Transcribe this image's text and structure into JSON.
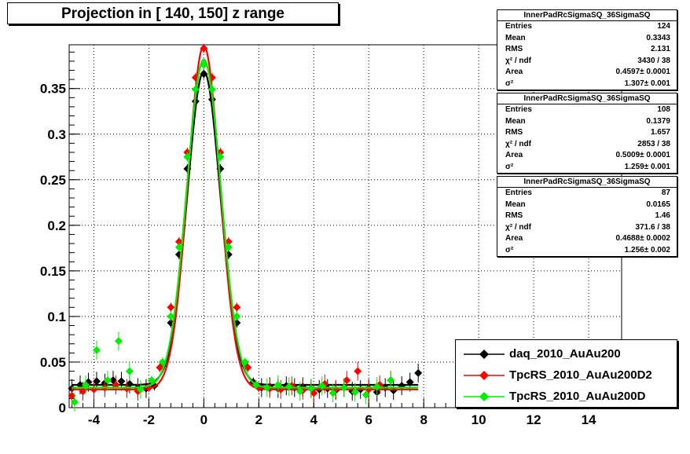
{
  "title": "Projection in [ 140, 150] z range",
  "stats_boxes": [
    {
      "name": "InnerPadRcSigmaSQ_36SigmaSQ",
      "rows": [
        [
          "Entries",
          "124"
        ],
        [
          "Mean",
          "0.3343"
        ],
        [
          "RMS",
          "2.131"
        ],
        [
          "χ² / ndf",
          "3430 / 38"
        ],
        [
          "Area",
          "0.4597± 0.0001"
        ],
        [
          "σ²",
          "1.307± 0.001"
        ]
      ]
    },
    {
      "name": "InnerPadRcSigmaSQ_36SigmaSQ",
      "rows": [
        [
          "Entries",
          "108"
        ],
        [
          "Mean",
          "0.1379"
        ],
        [
          "RMS",
          "1.657"
        ],
        [
          "χ² / ndf",
          "2853 / 38"
        ],
        [
          "Area",
          "0.5009± 0.0001"
        ],
        [
          "σ²",
          "1.259± 0.001"
        ]
      ]
    },
    {
      "name": "InnerPadRcSigmaSQ_36SigmaSQ",
      "rows": [
        [
          "Entries",
          "87"
        ],
        [
          "Mean",
          "0.0165"
        ],
        [
          "RMS",
          "1.46"
        ],
        [
          "χ² / ndf",
          "371.6 / 38"
        ],
        [
          "Area",
          "0.4688± 0.0002"
        ],
        [
          "σ²",
          "1.256± 0.002"
        ]
      ]
    }
  ],
  "legend": [
    {
      "label": "daq_2010_AuAu200",
      "color": "#000000"
    },
    {
      "label": "TpcRS_2010_AuAu200D2",
      "color": "#ff0000"
    },
    {
      "label": "TpcRS_2010_AuAu200D",
      "color": "#00ee00"
    }
  ],
  "chart_data": {
    "type": "scatter",
    "title": "Projection in [ 140, 150] z range",
    "xlim": [
      -4.9,
      15.2
    ],
    "ylim": [
      0,
      0.398
    ],
    "grid": true,
    "legend_placement": "bottom-right",
    "x_ticks": [
      -4,
      -2,
      0,
      2,
      4,
      6,
      8,
      10,
      12,
      14
    ],
    "y_ticks": [
      {
        "value": 0,
        "label": "0"
      },
      {
        "value": 0.05,
        "label": "0.05"
      },
      {
        "value": 0.1,
        "label": "0.1"
      },
      {
        "value": 0.15,
        "label": "0.15"
      },
      {
        "value": 0.2,
        "label": "0.2"
      },
      {
        "value": 0.25,
        "label": "0.25"
      },
      {
        "value": 0.3,
        "label": "0.3"
      },
      {
        "value": 0.35,
        "label": "0.35"
      }
    ],
    "series": [
      {
        "name": "daq_2010_AuAu200",
        "color": "#000000",
        "peak": 0.369,
        "sigma": 0.6,
        "baseline": 0.025,
        "x": [
          -4.8,
          -4.5,
          -4.2,
          -3.9,
          -3.6,
          -3.3,
          -3.0,
          -2.7,
          -2.4,
          -2.1,
          -1.8,
          -1.5,
          -1.2,
          -0.9,
          -0.6,
          -0.3,
          0,
          0.3,
          0.6,
          0.9,
          1.2,
          1.5,
          1.8,
          2.1,
          2.4,
          2.7,
          3.0,
          3.3,
          3.6,
          3.9,
          4.2,
          4.5,
          4.8,
          5.1,
          5.4,
          5.7,
          6.0,
          6.3,
          6.6,
          6.9,
          7.2,
          7.5,
          7.8
        ],
        "y": [
          0.021,
          0.025,
          0.028,
          0.029,
          0.027,
          0.03,
          0.029,
          0.026,
          0.022,
          0.021,
          0.024,
          0.046,
          0.093,
          0.168,
          0.262,
          0.336,
          0.366,
          0.338,
          0.262,
          0.168,
          0.093,
          0.046,
          0.028,
          0.022,
          0.023,
          0.021,
          0.024,
          0.022,
          0.023,
          0.021,
          0.02,
          0.021,
          0.019,
          0.022,
          0.018,
          0.02,
          0.021,
          0.017,
          0.022,
          0.019,
          0.024,
          0.028,
          0.038
        ]
      },
      {
        "name": "TpcRS_2010_AuAu200D2",
        "color": "#ff0000",
        "peak": 0.397,
        "sigma": 0.58,
        "baseline": 0.02,
        "x": [
          -4.8,
          -4.4,
          -4.0,
          -3.6,
          -3.2,
          -2.8,
          -2.4,
          -2.0,
          -1.6,
          -1.2,
          -0.9,
          -0.6,
          -0.3,
          0,
          0.3,
          0.6,
          0.9,
          1.2,
          1.6,
          2.0,
          2.4,
          2.8,
          3.2,
          3.6,
          4.0,
          4.4,
          4.8,
          5.2,
          5.6,
          6.0,
          6.4,
          6.8
        ],
        "y": [
          0.013,
          0.018,
          0.02,
          0.022,
          0.025,
          0.021,
          0.018,
          0.022,
          0.044,
          0.11,
          0.182,
          0.28,
          0.362,
          0.394,
          0.362,
          0.28,
          0.182,
          0.11,
          0.044,
          0.022,
          0.021,
          0.02,
          0.024,
          0.019,
          0.016,
          0.026,
          0.02,
          0.03,
          0.04,
          0.02,
          0.025,
          0.03
        ]
      },
      {
        "name": "TpcRS_2010_AuAu200D",
        "color": "#00ee00",
        "peak": 0.382,
        "sigma": 0.62,
        "baseline": 0.022,
        "x": [
          -4.7,
          -4.3,
          -3.9,
          -3.5,
          -3.1,
          -2.7,
          -2.3,
          -1.9,
          -1.5,
          -1.2,
          -0.9,
          -0.6,
          -0.3,
          0,
          0.3,
          0.6,
          0.9,
          1.2,
          1.5,
          1.9,
          2.3,
          2.7,
          3.1,
          3.5,
          3.9,
          4.3,
          4.7,
          5.1,
          5.5,
          5.9,
          6.3,
          6.8
        ],
        "y": [
          0.006,
          0.025,
          0.063,
          0.03,
          0.073,
          0.04,
          0.02,
          0.03,
          0.05,
          0.1,
          0.176,
          0.275,
          0.349,
          0.376,
          0.349,
          0.275,
          0.176,
          0.1,
          0.05,
          0.025,
          0.022,
          0.025,
          0.023,
          0.018,
          0.021,
          0.024,
          0.016,
          0.022,
          0.017,
          0.014,
          0.023,
          0.03
        ]
      }
    ]
  }
}
